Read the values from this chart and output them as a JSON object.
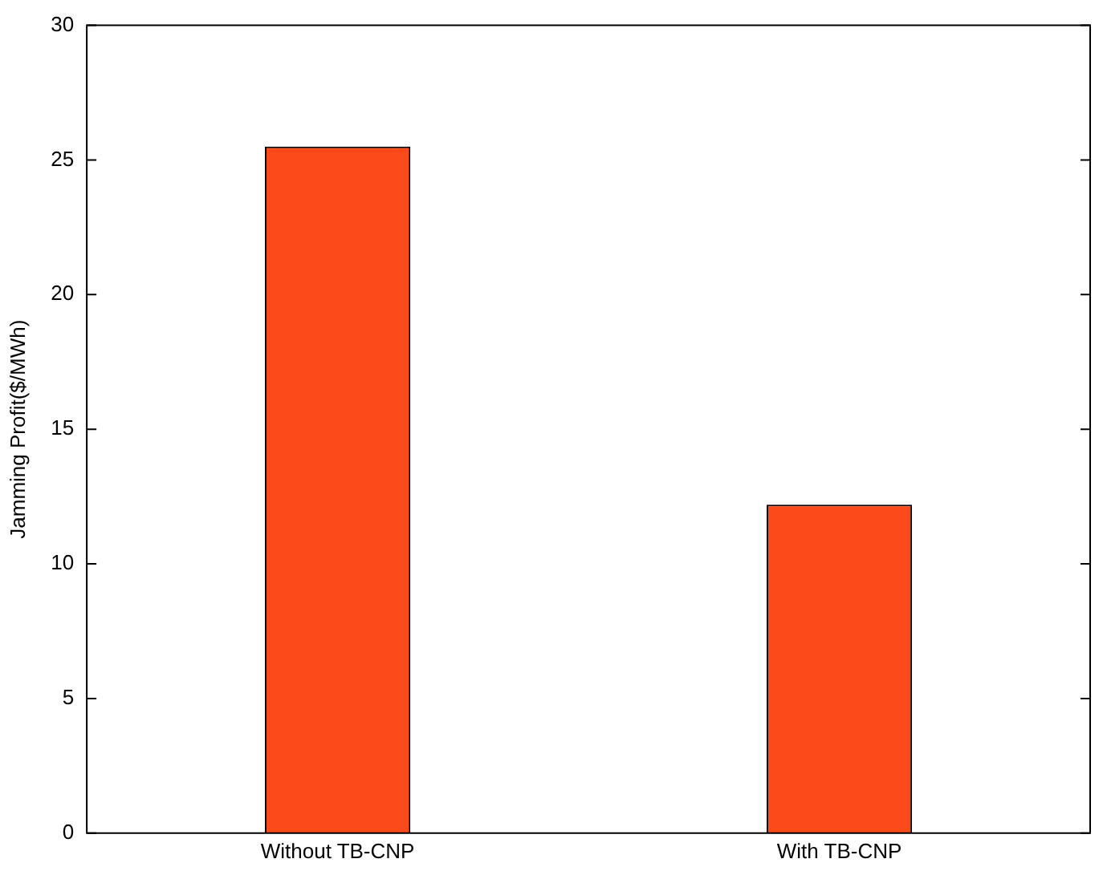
{
  "chart_data": {
    "type": "bar",
    "ylabel": "Jamming Profit($/MWh)",
    "categories": [
      "Without TB-CNP",
      "With TB-CNP"
    ],
    "values": [
      25.5,
      12.2
    ],
    "color": "#fc4a1a",
    "ylim": [
      0,
      30
    ],
    "yticks": [
      0,
      5,
      10,
      15,
      20,
      25,
      30
    ],
    "grid": false
  }
}
